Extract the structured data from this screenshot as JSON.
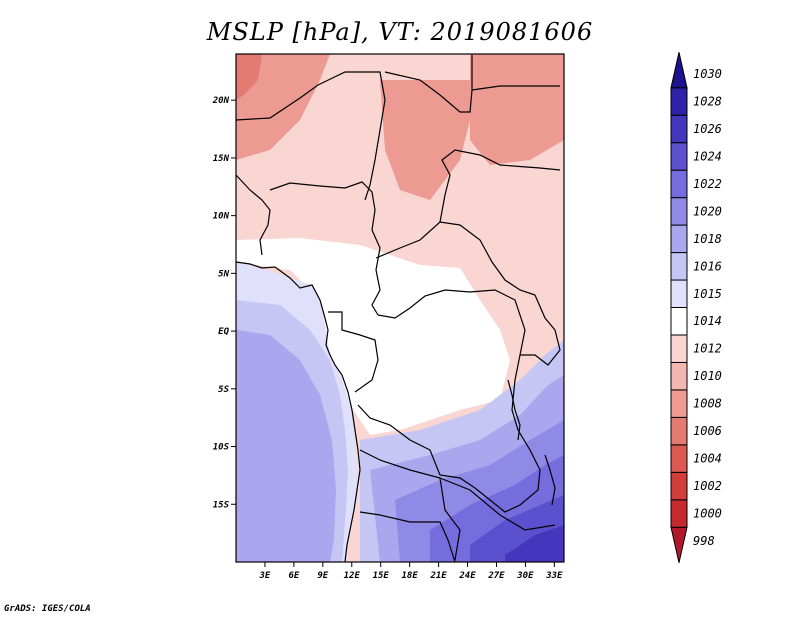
{
  "title": "MSLP [hPa], VT: 2019081606",
  "footer": "GrADS: IGES/COLA",
  "map": {
    "lon_range": [
      0,
      34
    ],
    "lat_range": [
      -20,
      24
    ],
    "x_ticks": [
      "3E",
      "6E",
      "9E",
      "12E",
      "15E",
      "18E",
      "21E",
      "24E",
      "27E",
      "30E",
      "33E"
    ],
    "y_ticks": [
      "20N",
      "15N",
      "10N",
      "5N",
      "EQ",
      "5S",
      "10S",
      "15S"
    ]
  },
  "colorbar": {
    "levels": [
      "998",
      "1000",
      "1002",
      "1004",
      "1006",
      "1008",
      "1010",
      "1012",
      "1014",
      "1015",
      "1016",
      "1018",
      "1020",
      "1022",
      "1024",
      "1026",
      "1028",
      "1030"
    ],
    "colors": [
      "#b2182b",
      "#c52a2f",
      "#d23f3a",
      "#dc5a52",
      "#e37b73",
      "#ec9a92",
      "#f3b7b1",
      "#f9d6d2",
      "#ffffff",
      "#e0e0fb",
      "#c6c6f5",
      "#aaa7ee",
      "#8f8ae6",
      "#756ddd",
      "#5b51cf",
      "#4437bd",
      "#2f22a9",
      "#1e138f"
    ]
  }
}
